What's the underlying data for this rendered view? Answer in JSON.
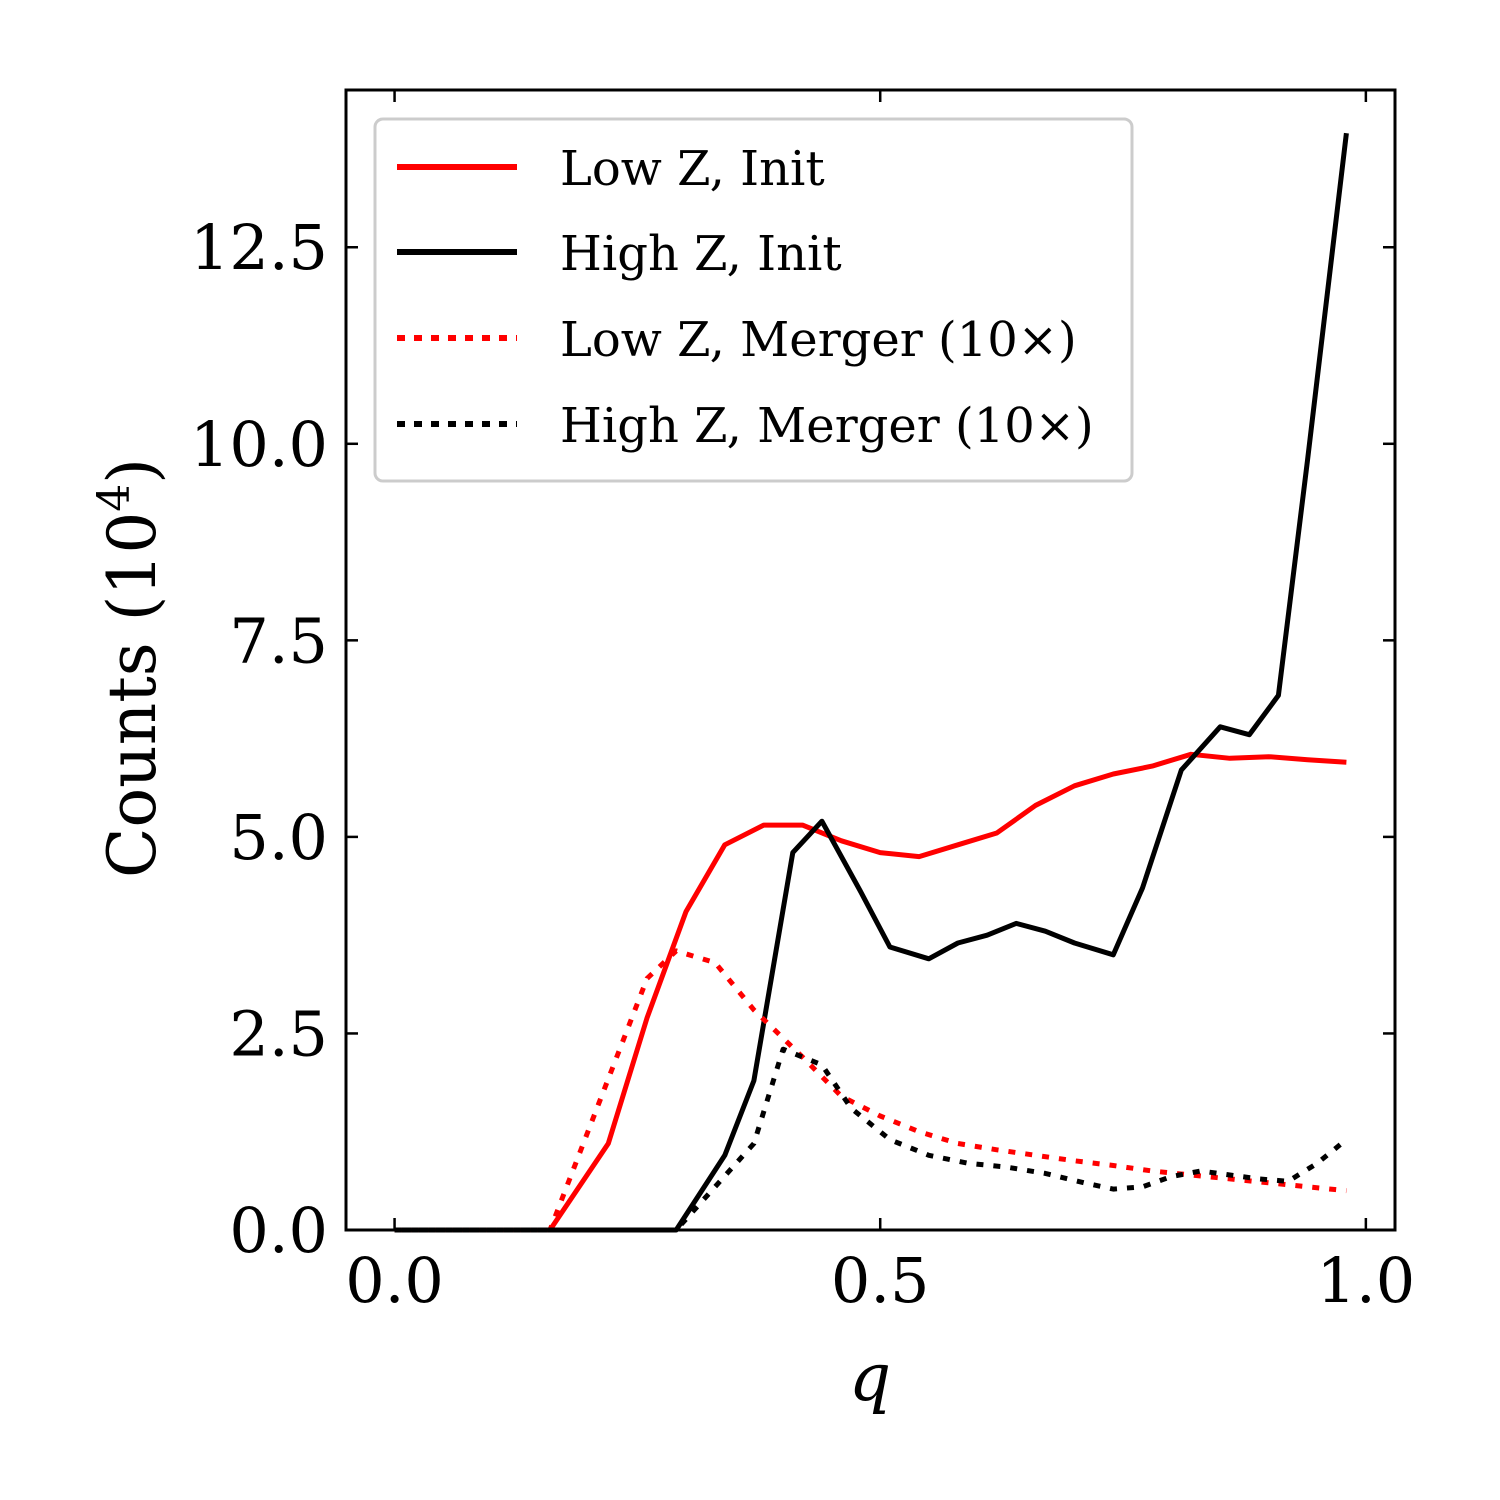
{
  "chart_data": {
    "type": "line",
    "xlabel": "q",
    "ylabel": "Counts (10",
    "ylabel_sup": "4",
    "ylabel_close": ")",
    "xlim": [
      -0.05,
      1.03
    ],
    "ylim": [
      0,
      14.5
    ],
    "xticks": [
      0.0,
      0.5,
      1.0
    ],
    "xtick_labels": [
      "0.0",
      "0.5",
      "1.0"
    ],
    "yticks": [
      0.0,
      2.5,
      5.0,
      7.5,
      10.0,
      12.5
    ],
    "ytick_labels": [
      "0.0",
      "2.5",
      "5.0",
      "7.5",
      "10.0",
      "12.5"
    ],
    "legend_position": "top-left",
    "series": [
      {
        "name": "Low Z, Init",
        "color": "#ff0000",
        "style": "solid",
        "x": [
          0.0,
          0.16,
          0.22,
          0.26,
          0.3,
          0.34,
          0.38,
          0.42,
          0.46,
          0.5,
          0.54,
          0.58,
          0.62,
          0.66,
          0.7,
          0.74,
          0.78,
          0.82,
          0.86,
          0.9,
          0.94,
          0.98
        ],
        "values": [
          0.0,
          0.0,
          1.1,
          2.7,
          4.05,
          4.9,
          5.15,
          5.15,
          4.95,
          4.8,
          4.75,
          4.9,
          5.05,
          5.4,
          5.65,
          5.8,
          5.9,
          6.05,
          6.0,
          6.02,
          5.98,
          5.95
        ]
      },
      {
        "name": "High Z, Init",
        "color": "#000000",
        "style": "solid",
        "x": [
          0.0,
          0.29,
          0.34,
          0.37,
          0.41,
          0.44,
          0.48,
          0.51,
          0.55,
          0.58,
          0.61,
          0.64,
          0.67,
          0.7,
          0.74,
          0.77,
          0.81,
          0.85,
          0.88,
          0.91,
          0.94,
          0.98
        ],
        "values": [
          0.0,
          0.0,
          0.95,
          1.9,
          4.8,
          5.2,
          4.3,
          3.6,
          3.45,
          3.65,
          3.75,
          3.9,
          3.8,
          3.65,
          3.5,
          4.35,
          5.85,
          6.4,
          6.3,
          6.8,
          9.8,
          13.95
        ]
      },
      {
        "name": "Low Z, Merger (10×)",
        "color": "#ff0000",
        "style": "dotted",
        "x": [
          0.0,
          0.16,
          0.21,
          0.26,
          0.29,
          0.33,
          0.37,
          0.42,
          0.46,
          0.5,
          0.54,
          0.58,
          0.62,
          0.66,
          0.7,
          0.74,
          0.78,
          0.82,
          0.86,
          0.9,
          0.94,
          0.98
        ],
        "values": [
          0.0,
          0.0,
          1.6,
          3.2,
          3.55,
          3.4,
          2.8,
          2.2,
          1.7,
          1.45,
          1.25,
          1.1,
          1.02,
          0.95,
          0.88,
          0.82,
          0.75,
          0.7,
          0.65,
          0.6,
          0.55,
          0.5
        ]
      },
      {
        "name": "High Z, Merger (10×)",
        "color": "#000000",
        "style": "dotted",
        "x": [
          0.0,
          0.29,
          0.33,
          0.37,
          0.4,
          0.44,
          0.47,
          0.51,
          0.55,
          0.59,
          0.63,
          0.67,
          0.71,
          0.74,
          0.77,
          0.8,
          0.83,
          0.86,
          0.89,
          0.92,
          0.95,
          0.98
        ],
        "values": [
          0.0,
          0.0,
          0.55,
          1.1,
          2.3,
          2.1,
          1.55,
          1.15,
          0.95,
          0.85,
          0.8,
          0.72,
          0.6,
          0.52,
          0.55,
          0.68,
          0.75,
          0.7,
          0.65,
          0.62,
          0.85,
          1.15
        ]
      }
    ]
  }
}
